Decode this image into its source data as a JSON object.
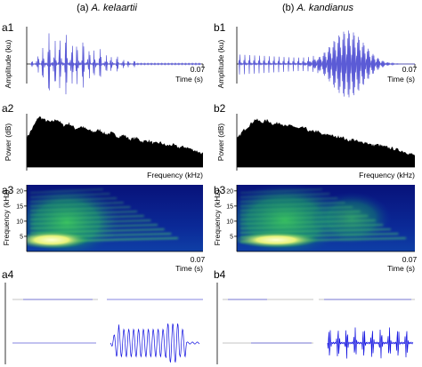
{
  "columns": [
    {
      "prefix": "(a) ",
      "species": "A. kelaartii"
    },
    {
      "prefix": "(b) ",
      "species": "A. kandianus"
    }
  ],
  "panel_labels": {
    "a1": "a1",
    "a2": "a2",
    "a3": "a3",
    "a4": "a4",
    "b1": "b1",
    "b2": "b2",
    "b3": "b3",
    "b4": "b4"
  },
  "chart_data": [
    {
      "id": "a1",
      "type": "line",
      "subtype": "waveform",
      "xlabel": "Time (s)",
      "ylabel": "Amplitude (ku)",
      "xlim": [
        0,
        0.07
      ],
      "x_tick_labels": [
        "0.07"
      ],
      "color": "#5b5bd6",
      "envelope": {
        "pulses": 19,
        "shape": "rise to peak near 0.015 s, decaying by 0.05 s"
      }
    },
    {
      "id": "b1",
      "type": "line",
      "subtype": "waveform",
      "xlabel": "Time (s)",
      "ylabel": "Amplitude (ku)",
      "xlim": [
        0,
        0.07
      ],
      "x_tick_labels": [
        "0.07"
      ],
      "color": "#5b5bd6",
      "envelope": {
        "pulses": 24,
        "shape": "series of short pulses then a larger burst near 0.045 s"
      }
    },
    {
      "id": "a2",
      "type": "area",
      "subtype": "power spectrum",
      "xlabel": "Frequency (kHz)",
      "ylabel": "Power (dB)",
      "color": "#000000",
      "profile": [
        0.55,
        0.74,
        0.95,
        0.88,
        0.84,
        0.9,
        0.78,
        0.82,
        0.72,
        0.76,
        0.7,
        0.66,
        0.7,
        0.62,
        0.64,
        0.57,
        0.6,
        0.52,
        0.55,
        0.48,
        0.5,
        0.44,
        0.46,
        0.4,
        0.42,
        0.37,
        0.38,
        0.34,
        0.3,
        0.25
      ]
    },
    {
      "id": "b2",
      "type": "area",
      "subtype": "power spectrum",
      "xlabel": "Frequency (kHz)",
      "ylabel": "Power (dB)",
      "color": "#000000",
      "profile": [
        0.52,
        0.68,
        0.78,
        0.9,
        0.84,
        0.88,
        0.8,
        0.84,
        0.76,
        0.78,
        0.72,
        0.74,
        0.66,
        0.68,
        0.6,
        0.62,
        0.56,
        0.58,
        0.5,
        0.52,
        0.46,
        0.47,
        0.41,
        0.42,
        0.38,
        0.36,
        0.33,
        0.3,
        0.26,
        0.22
      ]
    },
    {
      "id": "a3",
      "type": "heatmap",
      "subtype": "spectrogram",
      "xlabel": "Time (s)",
      "ylabel": "Frequency (kHz)",
      "xlim": [
        0,
        0.07
      ],
      "x_tick_labels": [
        "0.07"
      ],
      "yticks": [
        5,
        10,
        15,
        20
      ],
      "colors": {
        "low": "#0a1a8c",
        "mid": "#13a05a",
        "high": "#ffffcc"
      }
    },
    {
      "id": "b3",
      "type": "heatmap",
      "subtype": "spectrogram",
      "xlabel": "Time (s)",
      "ylabel": "Frequency (kHz)",
      "xlim": [
        0,
        0.07
      ],
      "x_tick_labels": [
        "0.07"
      ],
      "yticks": [
        5,
        10,
        15,
        20
      ],
      "colors": {
        "low": "#0a1a8c",
        "mid": "#13a05a",
        "high": "#ffffcc"
      }
    },
    {
      "id": "a4",
      "type": "line",
      "subtype": "waveform examples",
      "traces": [
        {
          "shape": "spindle",
          "color": "#5b5bd6"
        },
        {
          "shape": "spindle",
          "color": "#5b5bd6"
        },
        {
          "shape": "pulse train",
          "color": "#5b5bd6"
        },
        {
          "shape": "dense burst",
          "color": "#1010e0"
        }
      ]
    },
    {
      "id": "b4",
      "type": "line",
      "subtype": "waveform examples",
      "traces": [
        {
          "shape": "short spindle",
          "color": "#5b5bd6"
        },
        {
          "shape": "spindle",
          "color": "#5b5bd6"
        },
        {
          "shape": "spindle",
          "color": "#5b5bd6"
        },
        {
          "shape": "pulse train",
          "color": "#1010e0"
        }
      ]
    }
  ]
}
